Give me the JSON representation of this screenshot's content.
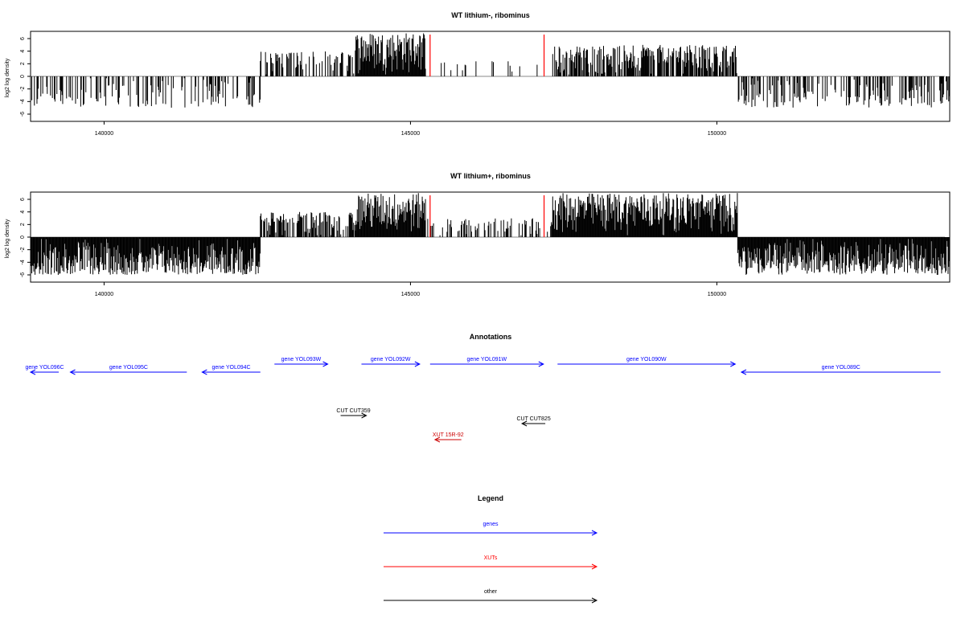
{
  "chart_data": [
    {
      "type": "bar",
      "title": "WT lithium-, ribominus",
      "ylabel": "log2 log density",
      "xlabel": "",
      "xlim": [
        138800,
        153800
      ],
      "ylim": [
        -6,
        6
      ],
      "xticks": [
        140000,
        145000,
        150000
      ],
      "xtick_labels": [
        "140000",
        "145000",
        "150000"
      ],
      "yticks": [
        -6,
        -4,
        -2,
        0,
        2,
        4,
        6
      ],
      "ytick_labels": [
        "-6",
        "-4",
        "-2",
        "0",
        "2",
        "4",
        "6"
      ],
      "color": "#000000",
      "segments": [
        {
          "from": 138810,
          "to": 142550,
          "sign": -1,
          "density": 0.35,
          "max": 5.0
        },
        {
          "from": 142550,
          "to": 144100,
          "sign": 1,
          "density": 0.45,
          "max": 4.0
        },
        {
          "from": 144100,
          "to": 145250,
          "sign": 1,
          "density": 1.0,
          "max": 7.0
        },
        {
          "from": 145250,
          "to": 147300,
          "sign": 1,
          "density": 0.08,
          "max": 2.5
        },
        {
          "from": 147300,
          "to": 150340,
          "sign": 1,
          "density": 0.75,
          "max": 5.0
        },
        {
          "from": 150340,
          "to": 153800,
          "sign": -1,
          "density": 0.4,
          "max": 5.0
        }
      ],
      "markers": {
        "x": [
          145320,
          147180
        ],
        "color": "#ff0000"
      }
    },
    {
      "type": "bar",
      "title": "WT lithium+, ribominus",
      "ylabel": "log2 log density",
      "xlabel": "",
      "xlim": [
        138800,
        153800
      ],
      "ylim": [
        -6,
        6
      ],
      "xticks": [
        140000,
        145000,
        150000
      ],
      "xtick_labels": [
        "140000",
        "145000",
        "150000"
      ],
      "yticks": [
        -6,
        -4,
        -2,
        0,
        2,
        4,
        6
      ],
      "ytick_labels": [
        "-6",
        "-4",
        "-2",
        "0",
        "2",
        "4",
        "6"
      ],
      "color": "#000000",
      "segments": [
        {
          "from": 138810,
          "to": 142550,
          "sign": -1,
          "density": 1.0,
          "max": 6.0
        },
        {
          "from": 142550,
          "to": 144100,
          "sign": 1,
          "density": 0.6,
          "max": 4.0
        },
        {
          "from": 144100,
          "to": 145250,
          "sign": 1,
          "density": 1.0,
          "max": 7.0
        },
        {
          "from": 145250,
          "to": 147300,
          "sign": 1,
          "density": 0.3,
          "max": 3.0
        },
        {
          "from": 147300,
          "to": 150340,
          "sign": 1,
          "density": 1.0,
          "max": 7.0
        },
        {
          "from": 150340,
          "to": 153800,
          "sign": -1,
          "density": 1.0,
          "max": 6.0
        }
      ],
      "markers": {
        "x": [
          145320,
          147180
        ],
        "color": "#ff0000"
      }
    }
  ],
  "annotations": {
    "title": "Annotations",
    "features": [
      {
        "label": "gene YOL096C",
        "color": "#0000ff",
        "row": 1,
        "start": 138800,
        "end": 139260,
        "strand": "-"
      },
      {
        "label": "gene YOL095C",
        "color": "#0000ff",
        "row": 1,
        "start": 139450,
        "end": 141350,
        "strand": "-"
      },
      {
        "label": "gene YOL094C",
        "color": "#0000ff",
        "row": 1,
        "start": 141600,
        "end": 142550,
        "strand": "-"
      },
      {
        "label": "gene YOL093W",
        "color": "#0000ff",
        "row": 0,
        "start": 142780,
        "end": 143650,
        "strand": "+"
      },
      {
        "label": "gene YOL092W",
        "color": "#0000ff",
        "row": 0,
        "start": 144200,
        "end": 145150,
        "strand": "+"
      },
      {
        "label": "gene YOL091W",
        "color": "#0000ff",
        "row": 0,
        "start": 145320,
        "end": 147170,
        "strand": "+"
      },
      {
        "label": "gene YOL090W",
        "color": "#0000ff",
        "row": 0,
        "start": 147400,
        "end": 150300,
        "strand": "+"
      },
      {
        "label": "gene YOL089C",
        "color": "#0000ff",
        "row": 1,
        "start": 150400,
        "end": 153650,
        "strand": "-"
      },
      {
        "label": "CUT CUT359",
        "color": "#000000",
        "row": 2,
        "start": 143860,
        "end": 144280,
        "strand": "+"
      },
      {
        "label": "CUT CUT825",
        "color": "#000000",
        "row": 3,
        "start": 146820,
        "end": 147200,
        "strand": "-"
      },
      {
        "label": "XUT 15R-92",
        "color": "#cc0000",
        "row": 4,
        "start": 145400,
        "end": 145830,
        "strand": "-"
      }
    ]
  },
  "legend": {
    "title": "Legend",
    "items": [
      {
        "label": "genes",
        "color": "#0000ff"
      },
      {
        "label": "XUTs",
        "color": "#ff0000"
      },
      {
        "label": "other",
        "color": "#000000"
      }
    ]
  }
}
